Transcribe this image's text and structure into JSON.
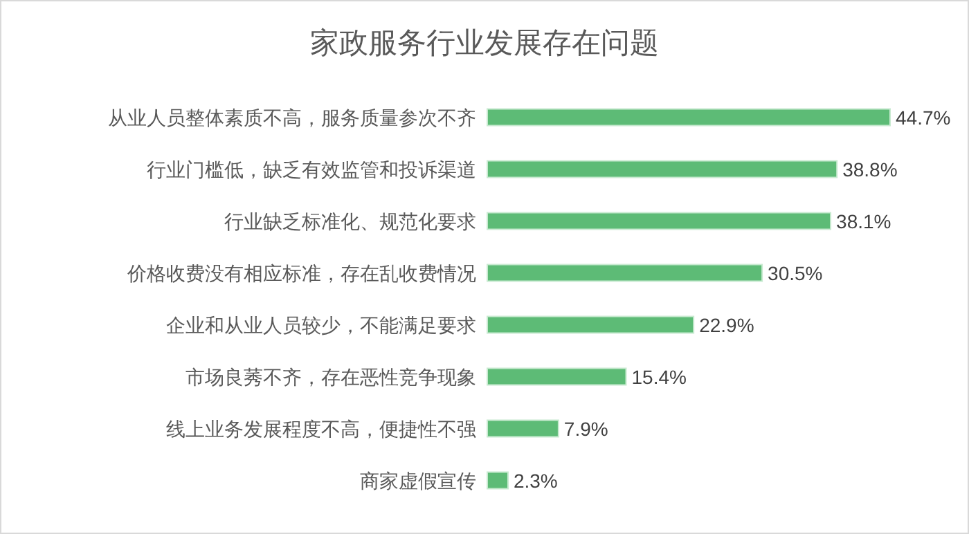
{
  "chart_data": {
    "type": "bar",
    "orientation": "horizontal",
    "title": "家政服务行业发展存在问题",
    "categories": [
      "从业人员整体素质不高，服务质量参次不齐",
      "行业门槛低，缺乏有效监管和投诉渠道",
      "行业缺乏标准化、规范化要求",
      "价格收费没有相应标准，存在乱收费情况",
      "企业和从业人员较少，不能满足要求",
      "市场良莠不齐，存在恶性竞争现象",
      "线上业务发展程度不高，便捷性不强",
      "商家虚假宣传"
    ],
    "values": [
      44.7,
      38.8,
      38.1,
      30.5,
      22.9,
      15.4,
      7.9,
      2.3
    ],
    "value_labels": [
      "44.7%",
      "38.8%",
      "38.1%",
      "30.5%",
      "22.9%",
      "15.4%",
      "7.9%",
      "2.3%"
    ],
    "color": "#5dbb76"
  }
}
